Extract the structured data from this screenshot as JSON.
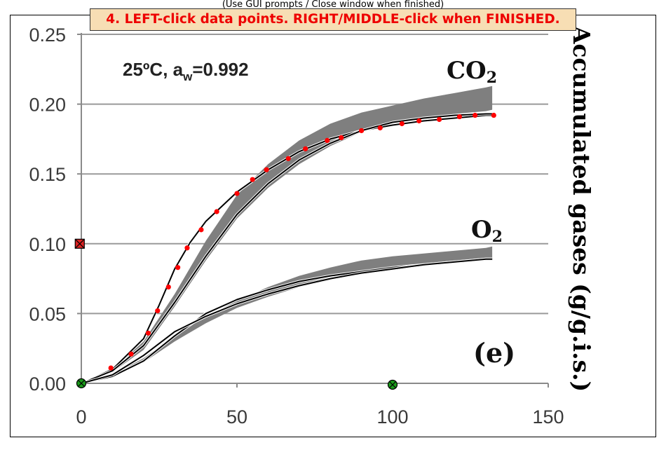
{
  "window": {
    "hint": "(Use GUI prompts / Close window when finished)",
    "instruction": "4. LEFT-click data points. RIGHT/MIDDLE-click when FINISHED."
  },
  "colors": {
    "band": "#7f7f7f",
    "grid": "#9a9a9a",
    "picked_point": "#ff0000",
    "calib_marker": "#1a9a1a",
    "calib_marker_y": "#dd2222",
    "banner_bg": "#f7deb4"
  },
  "chart_data": {
    "type": "line",
    "title": "",
    "ylabel": "Accumulated gases (g/g.i.s.)",
    "xlabel": "",
    "annotations": {
      "condition": "25ºC, a",
      "condition_sub": "w",
      "condition_value": "=0.992",
      "co2_label": "CO",
      "co2_sub": "2",
      "o2_label": "O",
      "o2_sub": "2",
      "panel": "(e)"
    },
    "xlim": [
      0,
      150
    ],
    "ylim": [
      0,
      0.25
    ],
    "x_ticks": [
      "0",
      "50",
      "100",
      "150"
    ],
    "y_ticks": [
      "0.00",
      "0.05",
      "0.10",
      "0.15",
      "0.20",
      "0.25"
    ],
    "grid": "horizontal",
    "series": [
      {
        "kind": "band",
        "x": [
          0,
          10,
          20,
          30,
          40,
          50,
          60,
          70,
          80,
          90,
          100,
          110,
          120,
          130,
          132
        ],
        "lower": [
          0,
          0.008,
          0.024,
          0.055,
          0.088,
          0.118,
          0.14,
          0.157,
          0.17,
          0.18,
          0.186,
          0.19,
          0.193,
          0.195,
          0.196
        ],
        "upper": [
          0,
          0.01,
          0.03,
          0.064,
          0.102,
          0.135,
          0.157,
          0.174,
          0.186,
          0.194,
          0.199,
          0.204,
          0.208,
          0.212,
          0.213
        ]
      },
      {
        "kind": "line",
        "x": [
          0,
          10,
          20,
          25,
          30,
          35,
          40,
          50,
          60,
          70,
          80,
          90,
          100,
          110,
          120,
          130,
          132
        ],
        "y": [
          0,
          0.01,
          0.032,
          0.056,
          0.082,
          0.101,
          0.116,
          0.137,
          0.153,
          0.166,
          0.175,
          0.181,
          0.185,
          0.188,
          0.19,
          0.192,
          0.192
        ]
      },
      {
        "kind": "line",
        "x": [
          0,
          10,
          20,
          30,
          40,
          50,
          60,
          70,
          80,
          90,
          100,
          110,
          120,
          130,
          132
        ],
        "y": [
          0,
          0.009,
          0.027,
          0.058,
          0.091,
          0.121,
          0.143,
          0.16,
          0.172,
          0.181,
          0.187,
          0.19,
          0.192,
          0.193,
          0.193
        ]
      },
      {
        "kind": "band",
        "x": [
          0,
          10,
          20,
          30,
          40,
          50,
          60,
          70,
          80,
          90,
          100,
          110,
          120,
          130,
          132
        ],
        "lower": [
          0,
          0.005,
          0.015,
          0.03,
          0.043,
          0.054,
          0.062,
          0.069,
          0.074,
          0.078,
          0.081,
          0.084,
          0.086,
          0.088,
          0.088
        ],
        "upper": [
          0,
          0.006,
          0.018,
          0.034,
          0.048,
          0.059,
          0.069,
          0.077,
          0.083,
          0.088,
          0.091,
          0.093,
          0.095,
          0.097,
          0.098
        ]
      },
      {
        "kind": "line",
        "x": [
          0,
          10,
          20,
          30,
          40,
          50,
          60,
          70,
          80,
          90,
          100,
          110,
          120,
          130,
          132
        ],
        "y": [
          0,
          0.005,
          0.016,
          0.034,
          0.05,
          0.06,
          0.067,
          0.073,
          0.077,
          0.08,
          0.083,
          0.085,
          0.087,
          0.089,
          0.089
        ]
      },
      {
        "kind": "line",
        "x": [
          0,
          10,
          20,
          30,
          40,
          50,
          60,
          70,
          80,
          90,
          100,
          110,
          120,
          130,
          132
        ],
        "y": [
          0,
          0.006,
          0.02,
          0.037,
          0.048,
          0.057,
          0.064,
          0.07,
          0.075,
          0.079,
          0.082,
          0.085,
          0.087,
          0.089,
          0.089
        ]
      }
    ],
    "picked_points": {
      "x": [
        9.5,
        16,
        21.5,
        24.5,
        28,
        31,
        34,
        38.5,
        43.5,
        50,
        55,
        59.5,
        66.5,
        72,
        79,
        83.5,
        90,
        96,
        103,
        108.5,
        115,
        121.5,
        126.5,
        132.5
      ],
      "y": [
        0.011,
        0.021,
        0.036,
        0.052,
        0.069,
        0.083,
        0.097,
        0.11,
        0.123,
        0.136,
        0.146,
        0.153,
        0.161,
        0.168,
        0.174,
        0.176,
        0.181,
        0.183,
        0.186,
        0.188,
        0.189,
        0.191,
        0.192,
        0.192
      ]
    },
    "calibration_markers": [
      {
        "axis": "x",
        "x": 0,
        "y": 0
      },
      {
        "axis": "x",
        "x": 100,
        "y": -0.001
      },
      {
        "axis": "y",
        "x": -0.5,
        "y": 0.1
      }
    ]
  }
}
